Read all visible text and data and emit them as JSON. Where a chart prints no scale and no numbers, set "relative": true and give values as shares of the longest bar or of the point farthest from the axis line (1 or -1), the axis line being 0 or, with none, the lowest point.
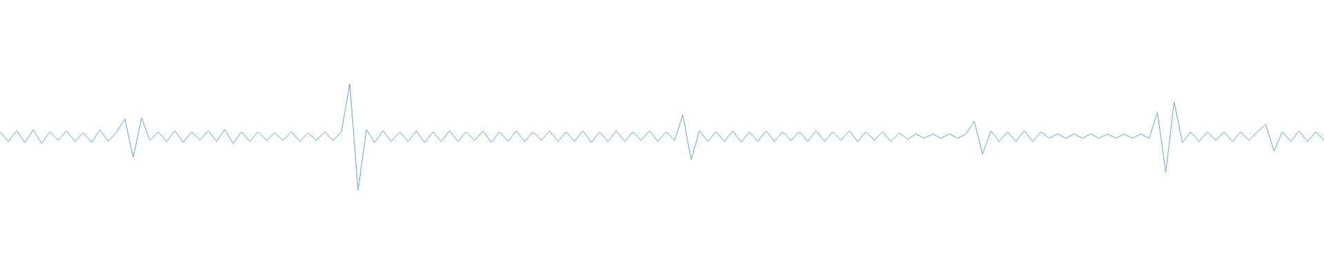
{
  "chart_data": {
    "type": "line",
    "relative": true,
    "color": "#5aa5e0",
    "categories": [
      null,
      null,
      null,
      null,
      null,
      null,
      null,
      null,
      null,
      null,
      null,
      null,
      null,
      null,
      null,
      null,
      null,
      null,
      null,
      null,
      null,
      null,
      null,
      null,
      null,
      null,
      null,
      null,
      null,
      null,
      null,
      null,
      null,
      null,
      null,
      null,
      null,
      null,
      null,
      null,
      null,
      null,
      null,
      null,
      null,
      null,
      null,
      null,
      null,
      null,
      null,
      null,
      null,
      null,
      null,
      null,
      null,
      null,
      null,
      null,
      null,
      null,
      null,
      null,
      null,
      null,
      null,
      null,
      null,
      null,
      null,
      null,
      null,
      null,
      null,
      null,
      null,
      null,
      null,
      null,
      null,
      null,
      null,
      null,
      null,
      null,
      null,
      null,
      null,
      null,
      null,
      null,
      null,
      null,
      null,
      null,
      null,
      null,
      null,
      null,
      null,
      null,
      null,
      null,
      null,
      null,
      null,
      null,
      null,
      null,
      null,
      null,
      null,
      null,
      null,
      null,
      null,
      null,
      null,
      null,
      null,
      null,
      null,
      null,
      null,
      null,
      null,
      null,
      null,
      null,
      null,
      null,
      null,
      null,
      null,
      null,
      null,
      null,
      null,
      null,
      null,
      null,
      null,
      null,
      null,
      null,
      null,
      null,
      null,
      null,
      null,
      null,
      null,
      null,
      null,
      null,
      null,
      null,
      null,
      null
    ],
    "values": [
      0.55,
      0.46,
      0.56,
      0.45,
      0.57,
      0.44,
      0.55,
      0.47,
      0.56,
      0.46,
      0.54,
      0.45,
      0.57,
      0.46,
      0.55,
      0.67,
      0.31,
      0.68,
      0.47,
      0.55,
      0.46,
      0.56,
      0.45,
      0.55,
      0.47,
      0.56,
      0.46,
      0.57,
      0.44,
      0.55,
      0.46,
      0.55,
      0.47,
      0.54,
      0.47,
      0.55,
      0.46,
      0.54,
      0.47,
      0.55,
      0.47,
      0.55,
      1,
      0,
      0.57,
      0.45,
      0.56,
      0.46,
      0.55,
      0.46,
      0.56,
      0.45,
      0.55,
      0.46,
      0.56,
      0.46,
      0.55,
      0.47,
      0.56,
      0.45,
      0.55,
      0.46,
      0.56,
      0.46,
      0.55,
      0.47,
      0.56,
      0.46,
      0.55,
      0.46,
      0.56,
      0.45,
      0.55,
      0.46,
      0.56,
      0.46,
      0.55,
      0.47,
      0.56,
      0.46,
      0.55,
      0.47,
      0.71,
      0.29,
      0.56,
      0.46,
      0.55,
      0.46,
      0.56,
      0.45,
      0.55,
      0.46,
      0.56,
      0.46,
      0.55,
      0.47,
      0.55,
      0.46,
      0.56,
      0.46,
      0.55,
      0.47,
      0.56,
      0.46,
      0.55,
      0.47,
      0.55,
      0.46,
      0.54,
      0.48,
      0.53,
      0.49,
      0.53,
      0.49,
      0.53,
      0.49,
      0.53,
      0.65,
      0.34,
      0.56,
      0.46,
      0.55,
      0.46,
      0.56,
      0.46,
      0.55,
      0.49,
      0.53,
      0.49,
      0.53,
      0.49,
      0.53,
      0.49,
      0.53,
      0.49,
      0.53,
      0.49,
      0.53,
      0.49,
      0.73,
      0.17,
      0.83,
      0.45,
      0.55,
      0.46,
      0.55,
      0.47,
      0.55,
      0.46,
      0.55,
      0.47,
      0.55,
      0.62,
      0.37,
      0.55,
      0.46,
      0.56,
      0.46,
      0.55,
      0.47
    ]
  }
}
